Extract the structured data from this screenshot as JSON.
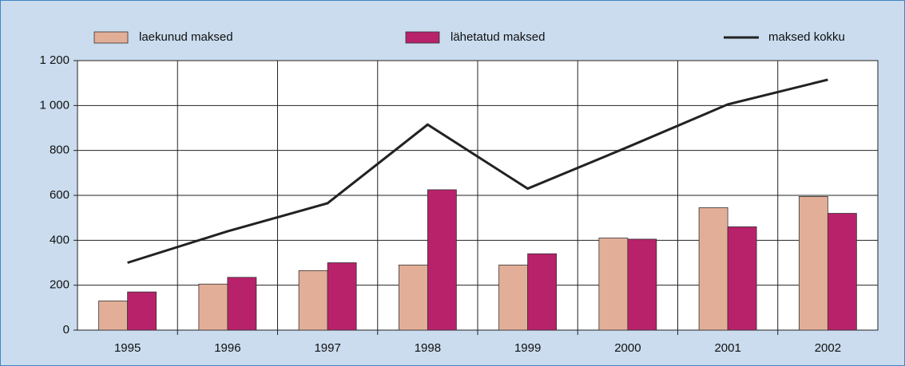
{
  "chart_data": {
    "type": "bar+line",
    "categories": [
      "1995",
      "1996",
      "1997",
      "1998",
      "1999",
      "2000",
      "2001",
      "2002"
    ],
    "series": [
      {
        "name": "laekunud maksed",
        "type": "bar",
        "color": "#e3ae98",
        "values": [
          130,
          205,
          265,
          290,
          290,
          410,
          545,
          595
        ]
      },
      {
        "name": "lähetatud maksed",
        "type": "bar",
        "color": "#b8226a",
        "values": [
          170,
          235,
          300,
          625,
          340,
          405,
          460,
          520
        ]
      },
      {
        "name": "maksed kokku",
        "type": "line",
        "color": "#222222",
        "values": [
          300,
          440,
          565,
          915,
          630,
          815,
          1005,
          1115
        ]
      }
    ],
    "ylim": [
      0,
      1200
    ],
    "yticks": [
      0,
      200,
      400,
      600,
      800,
      {
        "value": 1000,
        "label": "1 000"
      },
      {
        "value": 1200,
        "label": "1 200"
      }
    ],
    "grid": true,
    "legend": "top"
  }
}
